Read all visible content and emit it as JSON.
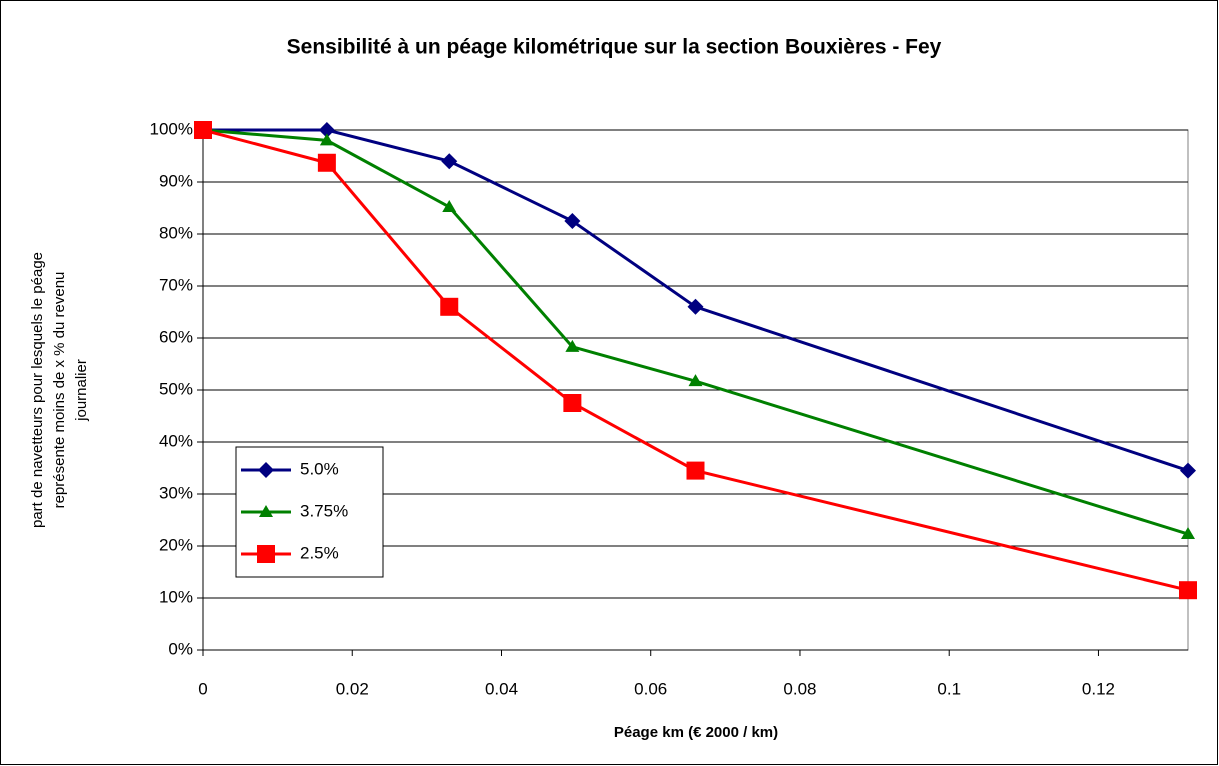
{
  "chart_data": {
    "type": "line",
    "title": "Sensibilité à un péage kilométrique sur la section Bouxières - Fey",
    "xlabel": "Péage km (€ 2000 / km)",
    "ylabel": [
      "part de navetteurs pour lesquels le péage",
      "représente moins de x  % du revenu",
      "journalier"
    ],
    "x": [
      0,
      0.0166,
      0.033,
      0.0495,
      0.066,
      0.132
    ],
    "series": [
      {
        "name": "5.0%",
        "color": "#000080",
        "marker": "diamond",
        "values": [
          100,
          100,
          94,
          82.5,
          66,
          34.5
        ]
      },
      {
        "name": "3.75%",
        "color": "#008000",
        "marker": "triangle",
        "values": [
          100,
          98,
          85.2,
          58.3,
          51.7,
          22.3
        ]
      },
      {
        "name": "2.5%",
        "color": "#ff0000",
        "marker": "square",
        "values": [
          100,
          93.7,
          66,
          47.5,
          34.5,
          11.5
        ]
      }
    ],
    "xlim": [
      0,
      0.132
    ],
    "xticks": [
      0,
      0.02,
      0.04,
      0.06,
      0.08,
      0.1,
      0.12
    ],
    "ylim": [
      0,
      100
    ],
    "yticks": [
      {
        "value": 0,
        "label": "0%"
      },
      {
        "value": 10,
        "label": "10%"
      },
      {
        "value": 20,
        "label": "20%"
      },
      {
        "value": 30,
        "label": "30%"
      },
      {
        "value": 40,
        "label": "40%"
      },
      {
        "value": 50,
        "label": "50%"
      },
      {
        "value": 60,
        "label": "60%"
      },
      {
        "value": 70,
        "label": "70%"
      },
      {
        "value": 80,
        "label": "80%"
      },
      {
        "value": 90,
        "label": "90%"
      },
      {
        "value": 100,
        "label": "100%"
      }
    ],
    "grid": true,
    "legend": "lower left"
  }
}
